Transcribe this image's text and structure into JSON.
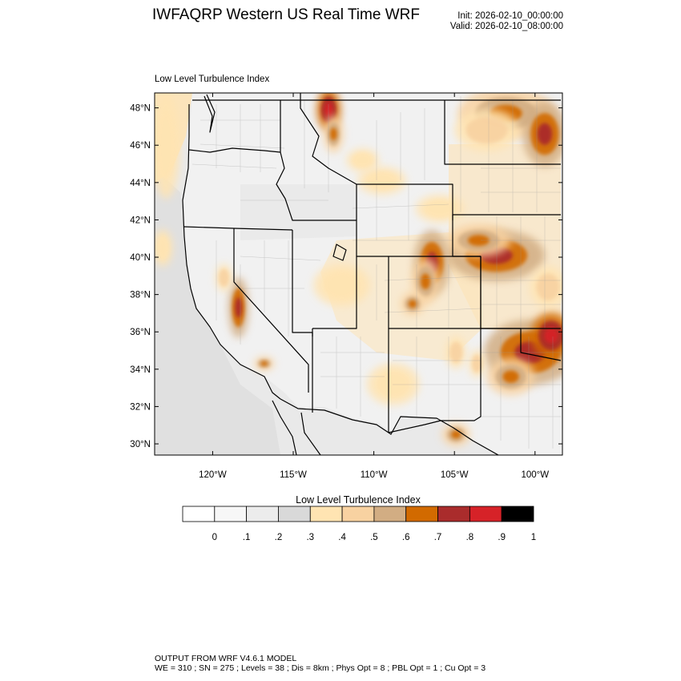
{
  "header": {
    "title": "IWFAQRP Western US Real Time WRF",
    "init": "Init: 2026-02-10_00:00:00",
    "valid": "Valid: 2026-02-10_08:00:00"
  },
  "map": {
    "field_label": "Low Level Turbulence Index",
    "lon_range": [
      -123.6,
      -98.3
    ],
    "lat_range": [
      29.4,
      48.8
    ],
    "lat_ticks": [
      {
        "value": 30,
        "label": "30°N"
      },
      {
        "value": 32,
        "label": "32°N"
      },
      {
        "value": 34,
        "label": "34°N"
      },
      {
        "value": 36,
        "label": "36°N"
      },
      {
        "value": 38,
        "label": "38°N"
      },
      {
        "value": 40,
        "label": "40°N"
      },
      {
        "value": 42,
        "label": "42°N"
      },
      {
        "value": 44,
        "label": "44°N"
      },
      {
        "value": 46,
        "label": "46°N"
      },
      {
        "value": 48,
        "label": "48°N"
      }
    ],
    "lon_ticks": [
      {
        "value": -120,
        "label": "120°W"
      },
      {
        "value": -115,
        "label": "115°W"
      },
      {
        "value": -110,
        "label": "110°W"
      },
      {
        "value": -105,
        "label": "105°W"
      },
      {
        "value": -100,
        "label": "100°W"
      }
    ],
    "hotspots": [
      {
        "lon": -112.8,
        "lat": 47.9,
        "rx": 0.6,
        "ry": 0.9,
        "level": 9
      },
      {
        "lon": -112.5,
        "lat": 46.6,
        "rx": 0.5,
        "ry": 0.8,
        "level": 7
      },
      {
        "lon": -101.8,
        "lat": 47.7,
        "rx": 2.4,
        "ry": 1.1,
        "level": 7
      },
      {
        "lon": -99.4,
        "lat": 46.6,
        "rx": 1.1,
        "ry": 1.4,
        "level": 8
      },
      {
        "lon": -103.0,
        "lat": 46.8,
        "rx": 1.6,
        "ry": 0.9,
        "level": 6
      },
      {
        "lon": -102.4,
        "lat": 40.1,
        "rx": 2.4,
        "ry": 1.1,
        "level": 8
      },
      {
        "lon": -103.5,
        "lat": 40.9,
        "rx": 1.6,
        "ry": 0.7,
        "level": 7
      },
      {
        "lon": -106.4,
        "lat": 39.7,
        "rx": 0.9,
        "ry": 1.4,
        "level": 8
      },
      {
        "lon": -106.8,
        "lat": 38.7,
        "rx": 0.7,
        "ry": 1.0,
        "level": 7
      },
      {
        "lon": -107.6,
        "lat": 37.5,
        "rx": 0.6,
        "ry": 0.5,
        "level": 7
      },
      {
        "lon": -118.4,
        "lat": 37.3,
        "rx": 0.5,
        "ry": 1.3,
        "level": 8
      },
      {
        "lon": -119.3,
        "lat": 38.9,
        "rx": 0.4,
        "ry": 0.6,
        "level": 6
      },
      {
        "lon": -116.8,
        "lat": 34.3,
        "rx": 0.5,
        "ry": 0.3,
        "level": 7
      },
      {
        "lon": -100.3,
        "lat": 34.9,
        "rx": 2.3,
        "ry": 1.4,
        "level": 8
      },
      {
        "lon": -99.0,
        "lat": 35.8,
        "rx": 1.0,
        "ry": 1.0,
        "level": 9
      },
      {
        "lon": -101.5,
        "lat": 33.6,
        "rx": 1.2,
        "ry": 0.8,
        "level": 7
      },
      {
        "lon": -104.9,
        "lat": 34.9,
        "rx": 0.5,
        "ry": 0.7,
        "level": 6
      },
      {
        "lon": -103.6,
        "lat": 34.3,
        "rx": 0.4,
        "ry": 0.6,
        "level": 6
      },
      {
        "lon": -104.9,
        "lat": 30.5,
        "rx": 0.7,
        "ry": 0.5,
        "level": 7
      },
      {
        "lon": -109.5,
        "lat": 44.1,
        "rx": 1.2,
        "ry": 0.6,
        "level": 5
      },
      {
        "lon": -110.7,
        "lat": 45.2,
        "rx": 0.8,
        "ry": 0.5,
        "level": 5
      },
      {
        "lon": -105.9,
        "lat": 42.6,
        "rx": 1.2,
        "ry": 0.6,
        "level": 5
      },
      {
        "lon": -99.2,
        "lat": 38.4,
        "rx": 0.9,
        "ry": 0.9,
        "level": 6
      },
      {
        "lon": -112.0,
        "lat": 38.5,
        "rx": 1.4,
        "ry": 0.9,
        "level": 4
      },
      {
        "lon": -108.8,
        "lat": 33.2,
        "rx": 1.3,
        "ry": 0.9,
        "level": 4
      },
      {
        "lon": -122.9,
        "lat": 46.0,
        "rx": 0.7,
        "ry": 2.3,
        "level": 4
      },
      {
        "lon": -123.1,
        "lat": 40.5,
        "rx": 0.5,
        "ry": 0.8,
        "level": 4
      }
    ]
  },
  "colorbar": {
    "title": "Low Level Turbulence Index",
    "colors": [
      "#ffffff",
      "#f7f7f7",
      "#ececec",
      "#d9d9d9",
      "#ffe4b2",
      "#f8d2a1",
      "#d2ad83",
      "#d26a00",
      "#aa2c2c",
      "#d62228",
      "#000000"
    ],
    "labels": [
      "0",
      ".1",
      ".2",
      ".3",
      ".4",
      ".5",
      ".6",
      ".7",
      ".8",
      ".9",
      "1"
    ]
  },
  "footer": {
    "line1": "OUTPUT FROM WRF V4.6.1 MODEL",
    "line2": "WE = 310 ; SN = 275 ; Levels = 38 ; Dis = 8km ; Phys Opt = 8 ; PBL Opt = 1 ; Cu Opt = 3"
  }
}
